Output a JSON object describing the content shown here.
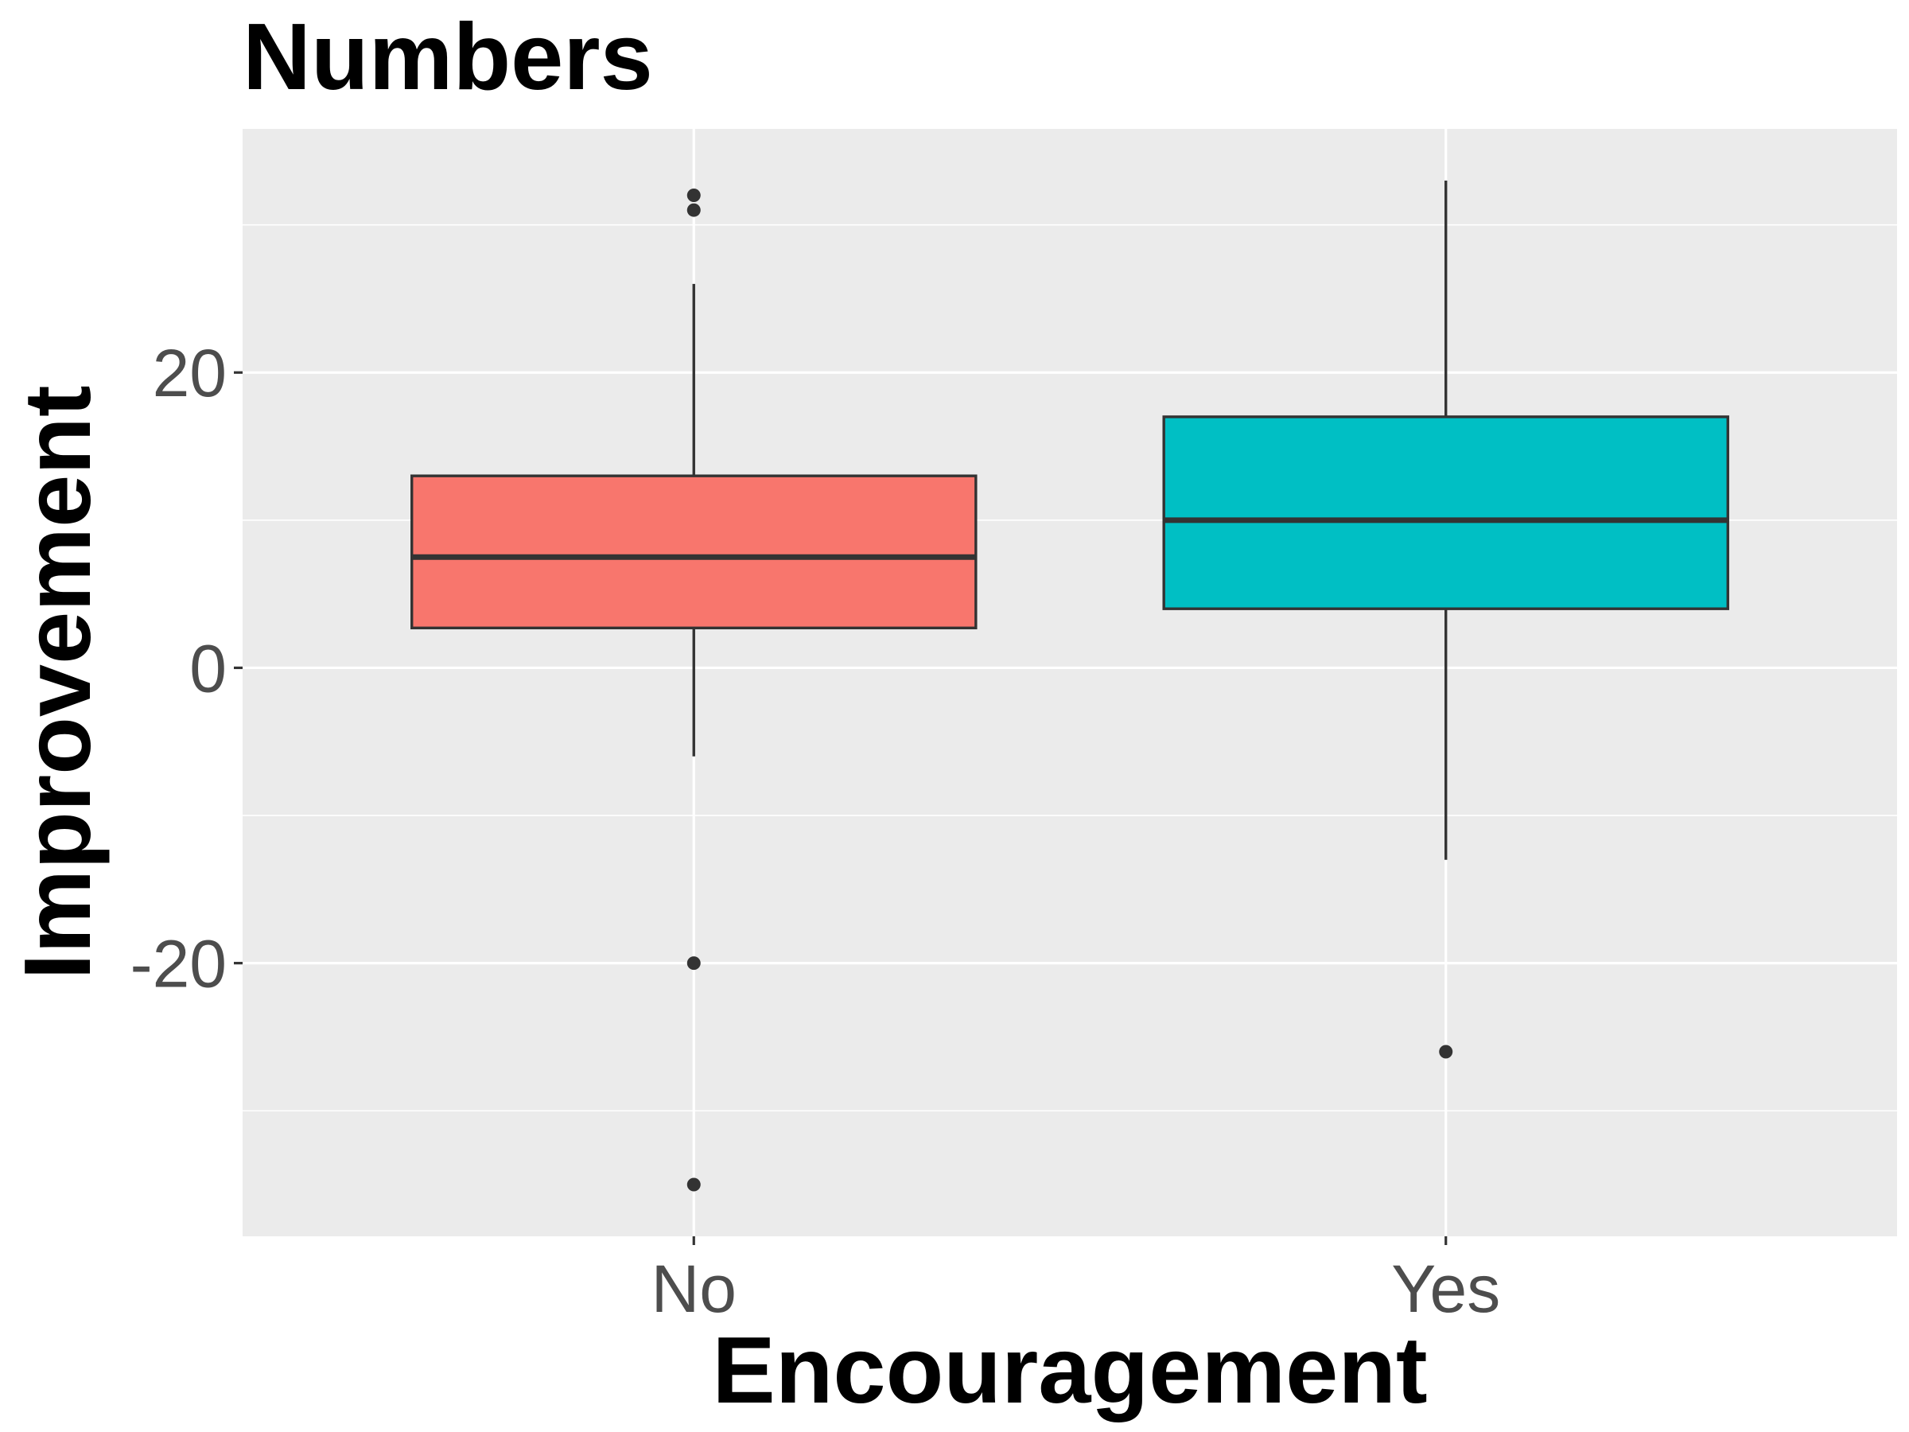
{
  "chart_data": {
    "type": "boxplot",
    "title": "Numbers",
    "xlabel": "Encouragement",
    "ylabel": "Improvement",
    "categories": [
      "No",
      "Yes"
    ],
    "ylim": [
      -38.5,
      36.5
    ],
    "y_ticks": [
      -20,
      0,
      20
    ],
    "y_tick_labels": [
      "-20",
      "0",
      "20"
    ],
    "grid": true,
    "legend": "none",
    "boxes": [
      {
        "category": "No",
        "color": "#F8766D",
        "whisker_low": -6,
        "q1": 2.7,
        "median": 7.5,
        "q3": 13,
        "whisker_high": 26,
        "outliers": [
          32,
          31,
          -20,
          -35
        ]
      },
      {
        "category": "Yes",
        "color": "#00BFC4",
        "whisker_low": -13,
        "q1": 4,
        "median": 10,
        "q3": 17,
        "whisker_high": 33,
        "outliers": [
          -26
        ]
      }
    ]
  }
}
